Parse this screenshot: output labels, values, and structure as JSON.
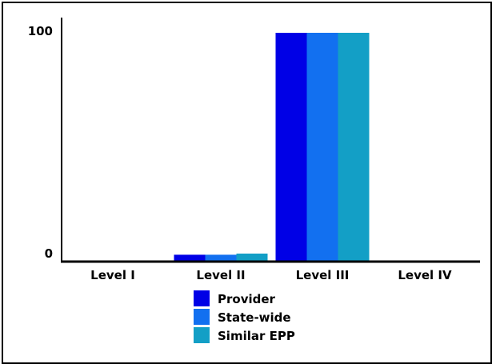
{
  "chart_data": {
    "type": "bar",
    "title": "",
    "xlabel": "",
    "ylabel": "",
    "categories": [
      "Level I",
      "Level II",
      "Level III",
      "Level IV"
    ],
    "series": [
      {
        "name": "Provider",
        "color": "#0000e6",
        "values": [
          0,
          3,
          100,
          0.5
        ]
      },
      {
        "name": "State-wide",
        "color": "#1270f0",
        "values": [
          0,
          3,
          100,
          0.5
        ]
      },
      {
        "name": "Similar EPP",
        "color": "#139fc6",
        "values": [
          0,
          3.5,
          100,
          0.3
        ]
      }
    ],
    "yticks": [
      "0",
      "100"
    ],
    "ylim": [
      0,
      100
    ],
    "grid": false,
    "legend": "bottom-center"
  }
}
